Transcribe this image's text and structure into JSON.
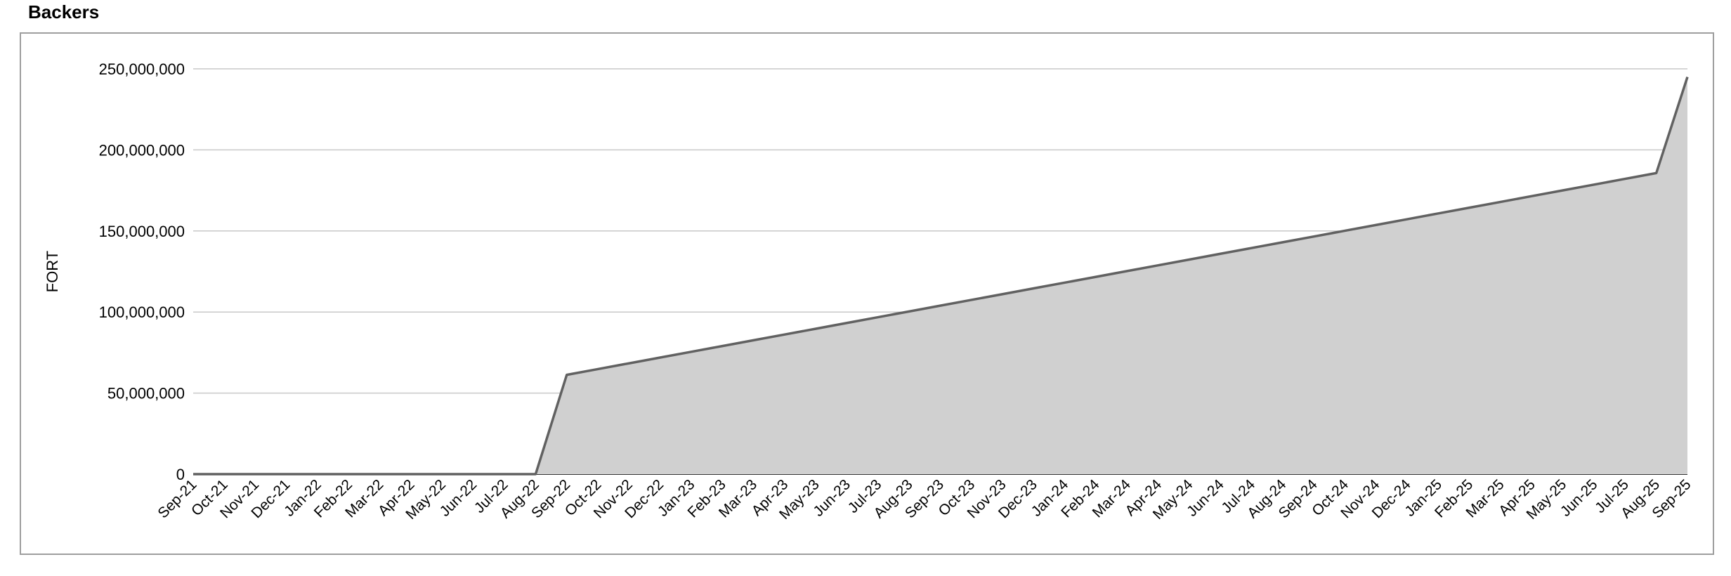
{
  "chart_data": {
    "type": "area",
    "title": "Backers",
    "xlabel": "",
    "ylabel": "FORT",
    "ylim": [
      0,
      250000000
    ],
    "y_ticks": [
      0,
      50000000,
      100000000,
      150000000,
      200000000,
      250000000
    ],
    "y_tick_labels": [
      "0",
      "50,000,000",
      "100,000,000",
      "150,000,000",
      "200,000,000",
      "250,000,000"
    ],
    "grid": true,
    "legend": "none",
    "colors": {
      "fill": "#d0d0d0",
      "line": "#616161",
      "grid": "#c8c8c8",
      "frame": "#9e9e9e"
    },
    "categories": [
      "Sep-21",
      "Oct-21",
      "Nov-21",
      "Dec-21",
      "Jan-22",
      "Feb-22",
      "Mar-22",
      "Apr-22",
      "May-22",
      "Jun-22",
      "Jul-22",
      "Aug-22",
      "Sep-22",
      "Oct-22",
      "Nov-22",
      "Dec-22",
      "Jan-23",
      "Feb-23",
      "Mar-23",
      "Apr-23",
      "May-23",
      "Jun-23",
      "Jul-23",
      "Aug-23",
      "Sep-23",
      "Oct-23",
      "Nov-23",
      "Dec-23",
      "Jan-24",
      "Feb-24",
      "Mar-24",
      "Apr-24",
      "May-24",
      "Jun-24",
      "Jul-24",
      "Aug-24",
      "Sep-24",
      "Oct-24",
      "Nov-24",
      "Dec-24",
      "Jan-25",
      "Feb-25",
      "Mar-25",
      "Apr-25",
      "May-25",
      "Jun-25",
      "Jul-25",
      "Aug-25",
      "Sep-25"
    ],
    "series": [
      {
        "values": [
          0,
          0,
          0,
          0,
          0,
          0,
          0,
          0,
          0,
          0,
          0,
          0,
          61250000,
          64806000,
          68362000,
          71918000,
          75474000,
          79030000,
          82586000,
          86142000,
          89698000,
          93254000,
          96810000,
          100366000,
          103922000,
          107478000,
          111034000,
          114590000,
          118146000,
          121702000,
          125258000,
          128814000,
          132370000,
          135926000,
          139482000,
          143038000,
          146594000,
          150150000,
          153706000,
          157262000,
          160818000,
          164374000,
          167930000,
          171486000,
          175042000,
          178598000,
          182154000,
          185710000,
          245000000
        ]
      }
    ]
  }
}
